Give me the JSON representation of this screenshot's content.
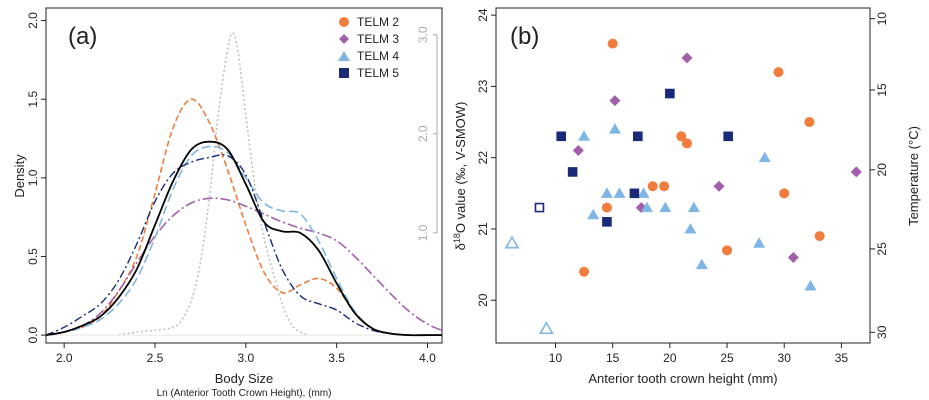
{
  "chart_data": [
    {
      "type": "line",
      "panel_label": "(a)",
      "xlabel": "Body Size",
      "xlabel2": "Ln (Anterior Tooth Crown Height), (mm)",
      "ylabel": "Density",
      "xlim": [
        1.9,
        4.08
      ],
      "ylim": [
        -0.05,
        2.08
      ],
      "x_ticks": [
        "2.0",
        "2.5",
        "3.0",
        "3.5",
        "4.0"
      ],
      "y_ticks": [
        "0.0",
        "0.5",
        "1.0",
        "1.5",
        "2.0"
      ],
      "y2_ticks": [
        "1.0",
        "2.0",
        "3.0"
      ],
      "y2_tick_at_density": [
        0.65,
        1.28,
        1.91
      ],
      "x": [
        1.9,
        2.0,
        2.1,
        2.2,
        2.3,
        2.4,
        2.5,
        2.6,
        2.7,
        2.8,
        2.9,
        3.0,
        3.1,
        3.2,
        3.3,
        3.4,
        3.5,
        3.6,
        3.7,
        3.8,
        3.9,
        4.0,
        4.08
      ],
      "series": [
        {
          "name": "TELM 2",
          "color": "#f07d3e",
          "dash": "6,3",
          "width": 1.6,
          "values": [
            0.0,
            0.02,
            0.05,
            0.12,
            0.28,
            0.5,
            0.9,
            1.32,
            1.5,
            1.35,
            1.05,
            0.7,
            0.4,
            0.27,
            0.32,
            0.36,
            0.3,
            0.14,
            0.04,
            0.01,
            0.0,
            0.0,
            0.0
          ]
        },
        {
          "name": "TELM 3",
          "color": "#a25fac",
          "dash": "10,3,2,3",
          "width": 1.6,
          "values": [
            0.0,
            0.02,
            0.06,
            0.14,
            0.28,
            0.46,
            0.63,
            0.76,
            0.84,
            0.87,
            0.86,
            0.82,
            0.77,
            0.72,
            0.68,
            0.65,
            0.6,
            0.5,
            0.38,
            0.26,
            0.15,
            0.07,
            0.03
          ]
        },
        {
          "name": "TELM 4",
          "color": "#7fb6e6",
          "dash": "9,4",
          "width": 1.6,
          "values": [
            0.0,
            0.02,
            0.05,
            0.1,
            0.2,
            0.36,
            0.62,
            0.93,
            1.14,
            1.2,
            1.16,
            1.0,
            0.84,
            0.79,
            0.77,
            0.6,
            0.36,
            0.15,
            0.04,
            0.01,
            0.0,
            0.0,
            0.0
          ]
        },
        {
          "name": "TELM 5",
          "color": "#1a2a78",
          "dash": "8,3,2,3",
          "width": 1.4,
          "values": [
            0.0,
            0.05,
            0.12,
            0.2,
            0.35,
            0.58,
            0.85,
            1.03,
            1.1,
            1.13,
            1.14,
            1.02,
            0.72,
            0.42,
            0.25,
            0.2,
            0.16,
            0.08,
            0.03,
            0.01,
            0.0,
            0.0,
            0.0
          ]
        },
        {
          "name": "",
          "color": "#000000",
          "dash": "",
          "width": 1.8,
          "values": [
            0.0,
            0.02,
            0.06,
            0.12,
            0.24,
            0.42,
            0.7,
            0.98,
            1.18,
            1.23,
            1.18,
            0.96,
            0.72,
            0.66,
            0.65,
            0.54,
            0.33,
            0.14,
            0.04,
            0.01,
            0.0,
            0.0,
            0.0
          ]
        }
      ],
      "reference_series": {
        "name": "",
        "color": "#c0c0c0",
        "dash": "2,2.5",
        "width": 1.6,
        "x": [
          2.3,
          2.4,
          2.5,
          2.6,
          2.65,
          2.7,
          2.75,
          2.8,
          2.85,
          2.9,
          2.93,
          2.96,
          3.0,
          3.05,
          3.1,
          3.15,
          3.2,
          3.25,
          3.3,
          3.35
        ],
        "values": [
          0.0,
          0.02,
          0.03,
          0.05,
          0.1,
          0.22,
          0.46,
          0.88,
          1.42,
          1.82,
          1.92,
          1.78,
          1.4,
          0.95,
          0.62,
          0.4,
          0.2,
          0.07,
          0.02,
          0.0
        ]
      }
    },
    {
      "type": "scatter",
      "panel_label": "(b)",
      "xlabel": "Anterior tooth crown height (mm)",
      "ylabel_parts": [
        "δ",
        "18",
        "O value (‰, V-SMOW)"
      ],
      "ylabel2": "Temperature (°C)",
      "xlim": [
        4.8,
        37.5
      ],
      "ylim": [
        19.4,
        24.1
      ],
      "x_ticks": [
        "10",
        "15",
        "20",
        "25",
        "30",
        "35"
      ],
      "y_ticks": [
        "20",
        "21",
        "22",
        "23",
        "24"
      ],
      "y2_ticks": [
        "10",
        "15",
        "20",
        "25",
        "30"
      ],
      "y2_tick_at_d18o": [
        23.95,
        22.95,
        21.83,
        20.72,
        19.55
      ],
      "legend": {
        "position": "top-right-of-panel-a"
      },
      "series": [
        {
          "name": "TELM 2",
          "marker": "circle",
          "color": "#f07d3e",
          "points": [
            [
              15.0,
              23.6
            ],
            [
              14.5,
              21.3
            ],
            [
              12.5,
              20.4
            ],
            [
              18.5,
              21.6
            ],
            [
              19.5,
              21.6
            ],
            [
              21.0,
              22.3
            ],
            [
              21.5,
              22.2
            ],
            [
              25.0,
              20.7
            ],
            [
              29.5,
              23.2
            ],
            [
              30.0,
              21.5
            ],
            [
              32.2,
              22.5
            ],
            [
              33.1,
              20.9
            ]
          ]
        },
        {
          "name": "TELM 3",
          "marker": "diamond",
          "color": "#a25fac",
          "points": [
            [
              12.0,
              22.1
            ],
            [
              15.2,
              22.8
            ],
            [
              17.5,
              21.3
            ],
            [
              21.5,
              23.4
            ],
            [
              24.3,
              21.6
            ],
            [
              30.8,
              20.6
            ],
            [
              36.3,
              21.8
            ]
          ]
        },
        {
          "name": "TELM 4",
          "marker": "triangle",
          "color": "#7fb6e6",
          "points": [
            [
              6.2,
              20.8,
              "open"
            ],
            [
              9.2,
              19.6,
              "open"
            ],
            [
              12.5,
              22.3
            ],
            [
              13.3,
              21.2
            ],
            [
              14.5,
              21.5
            ],
            [
              15.2,
              22.4
            ],
            [
              15.6,
              21.5
            ],
            [
              17.7,
              21.5
            ],
            [
              18.0,
              21.3
            ],
            [
              19.6,
              21.3
            ],
            [
              21.8,
              21.0
            ],
            [
              22.1,
              21.3
            ],
            [
              22.8,
              20.5
            ],
            [
              27.8,
              20.8
            ],
            [
              28.3,
              22.0
            ],
            [
              32.3,
              20.2
            ]
          ]
        },
        {
          "name": "TELM 5",
          "marker": "square",
          "color": "#1a2a78",
          "points": [
            [
              8.6,
              21.3,
              "open"
            ],
            [
              10.5,
              22.3
            ],
            [
              11.5,
              21.8
            ],
            [
              14.5,
              21.1
            ],
            [
              16.9,
              21.5
            ],
            [
              17.2,
              22.3
            ],
            [
              20.0,
              22.9
            ],
            [
              25.1,
              22.3
            ]
          ]
        }
      ]
    }
  ]
}
